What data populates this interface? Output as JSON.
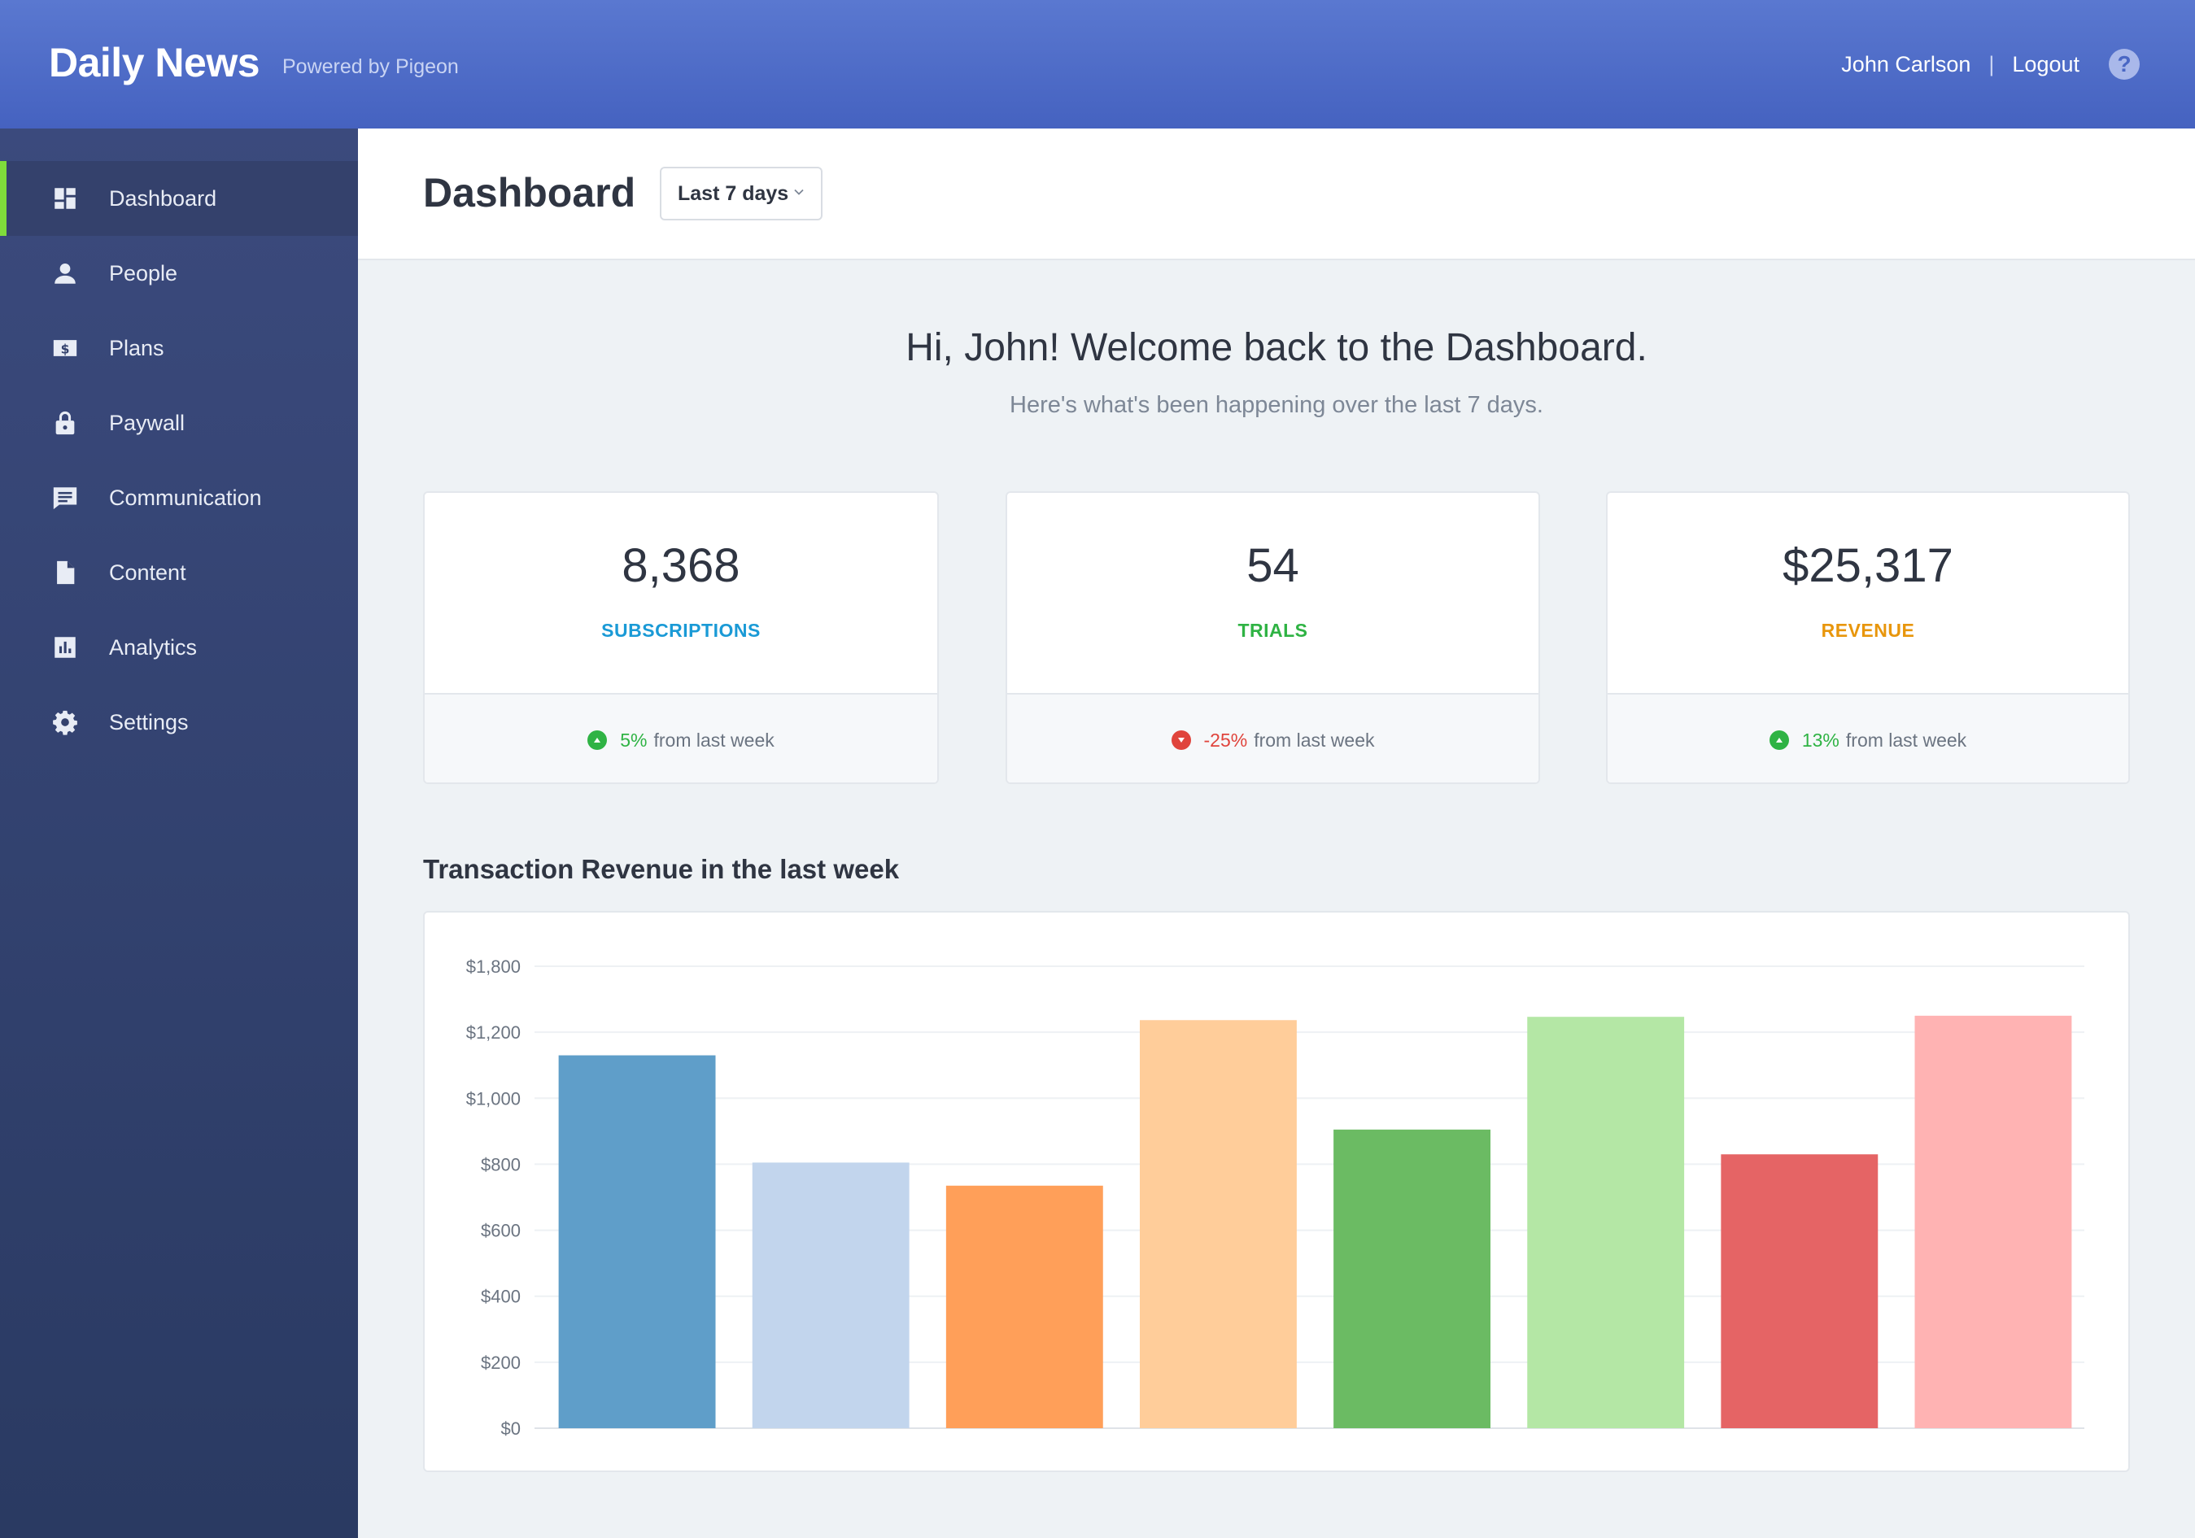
{
  "header": {
    "brand": "Daily News",
    "powered_by": "Powered by Pigeon",
    "user_name": "John Carlson",
    "separator": "|",
    "logout_label": "Logout",
    "help_glyph": "?"
  },
  "sidebar": {
    "active_color": "#7fdc3b",
    "items": [
      {
        "label": "Dashboard",
        "icon": "dashboard-icon"
      },
      {
        "label": "People",
        "icon": "person-icon"
      },
      {
        "label": "Plans",
        "icon": "dollar-bill-icon"
      },
      {
        "label": "Paywall",
        "icon": "lock-icon"
      },
      {
        "label": "Communication",
        "icon": "chat-icon"
      },
      {
        "label": "Content",
        "icon": "document-icon"
      },
      {
        "label": "Analytics",
        "icon": "bar-chart-icon"
      },
      {
        "label": "Settings",
        "icon": "gear-icon"
      }
    ]
  },
  "page": {
    "title": "Dashboard",
    "range_selected": "Last 7 days"
  },
  "welcome": {
    "heading": "Hi, John! Welcome back to the Dashboard.",
    "subheading": "Here's what's been happening over the last 7 days."
  },
  "stats": [
    {
      "value": "8,368",
      "label": "SUBSCRIPTIONS",
      "label_color": "#1a9ad6",
      "trend": "5%",
      "trend_direction": "up",
      "trend_color": "#2fb344",
      "trend_text": "from last week"
    },
    {
      "value": "54",
      "label": "TRIALS",
      "label_color": "#2fb344",
      "trend": "-25%",
      "trend_direction": "down",
      "trend_color": "#e0443c",
      "trend_text": "from last week"
    },
    {
      "value": "$25,317",
      "label": "REVENUE",
      "label_color": "#e8960c",
      "trend": "13%",
      "trend_direction": "up",
      "trend_color": "#2fb344",
      "trend_text": "from last week"
    }
  ],
  "chart": {
    "title": "Transaction Revenue in the last week"
  },
  "chart_data": {
    "type": "bar",
    "title": "Transaction Revenue in the last week",
    "xlabel": "",
    "ylabel": "",
    "y_ticks": [
      "$0",
      "$200",
      "$400",
      "$600",
      "$800",
      "$1,000",
      "$1,200",
      "$1,800"
    ],
    "values": [
      1130,
      805,
      735,
      1310,
      905,
      1340,
      830,
      1350
    ],
    "colors": [
      "#5f9ec9",
      "#c2d5ed",
      "#ff9f59",
      "#ffcd9a",
      "#6bbb63",
      "#b4e7a5",
      "#e56465",
      "#ffb3b3"
    ],
    "grid": true,
    "legend": "none"
  }
}
